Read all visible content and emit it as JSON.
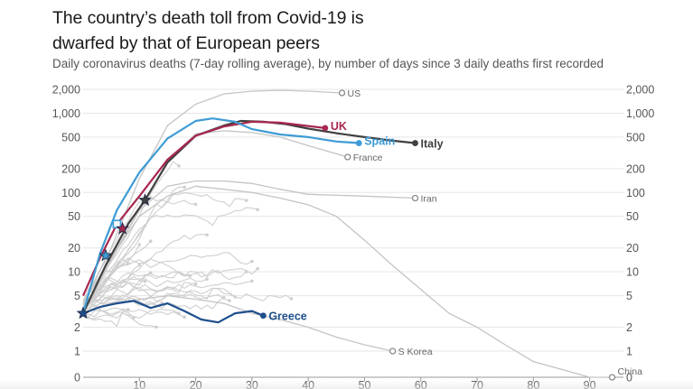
{
  "header": {
    "title_line1": "The country’s death toll from Covid-19 is",
    "title_line2": "dwarfed by that of European peers",
    "subtitle": "Daily coronavirus deaths (7-day rolling average), by number of days since 3 daily deaths first recorded"
  },
  "chart_data": {
    "type": "line",
    "title": "The country’s death toll from Covid-19 is dwarfed by that of European peers",
    "subtitle": "Daily coronavirus deaths (7-day rolling average), by number of days since 3 daily deaths first recorded",
    "xlabel": "",
    "ylabel": "",
    "xlim": [
      0,
      96
    ],
    "ylim": [
      0,
      2000
    ],
    "y_scale": "log",
    "x_ticks": [
      10,
      20,
      30,
      40,
      50,
      60,
      70,
      80,
      90
    ],
    "y_ticks": [
      {
        "value": 2000,
        "label": "2,000"
      },
      {
        "value": 1000,
        "label": "1,000"
      },
      {
        "value": 500,
        "label": "500"
      },
      {
        "value": 200,
        "label": "200"
      },
      {
        "value": 100,
        "label": "100"
      },
      {
        "value": 50,
        "label": "50"
      },
      {
        "value": 20,
        "label": "20"
      },
      {
        "value": 10,
        "label": "10"
      },
      {
        "value": 5,
        "label": "5"
      },
      {
        "value": 2,
        "label": "2"
      },
      {
        "value": 1,
        "label": "1"
      },
      {
        "value": 0,
        "label": "0"
      }
    ],
    "colors": {
      "UK": "#a8284f",
      "Spain": "#3d9bd5",
      "Italy": "#404040",
      "Greece": "#1e4f8c",
      "other": "#cfcfcf",
      "labeled_other": "#c4c4c4",
      "label_gray": "#666666",
      "tick_gray": "#555555"
    },
    "series": [
      {
        "name": "US",
        "highlight": false,
        "x": [
          0,
          5,
          10,
          15,
          20,
          25,
          30,
          35,
          40,
          46
        ],
        "y": [
          4,
          20,
          150,
          700,
          1300,
          1750,
          1900,
          1950,
          1900,
          1800
        ]
      },
      {
        "name": "France",
        "highlight": false,
        "x": [
          0,
          5,
          10,
          15,
          20,
          25,
          30,
          35,
          40,
          47
        ],
        "y": [
          3,
          14,
          60,
          250,
          550,
          600,
          570,
          500,
          390,
          280
        ]
      },
      {
        "name": "Iran",
        "highlight": false,
        "x": [
          0,
          5,
          10,
          15,
          20,
          25,
          30,
          35,
          40,
          50,
          59
        ],
        "y": [
          4,
          15,
          60,
          120,
          140,
          140,
          130,
          110,
          95,
          90,
          85
        ]
      },
      {
        "name": "S Korea",
        "highlight": false,
        "x": [
          0,
          5,
          10,
          15,
          20,
          25,
          30,
          35,
          40,
          45,
          50,
          55
        ],
        "y": [
          3,
          4,
          4.5,
          5,
          4.5,
          4,
          3,
          2.5,
          2,
          1.5,
          1.2,
          1
        ]
      },
      {
        "name": "China",
        "highlight": false,
        "x": [
          0,
          5,
          10,
          15,
          20,
          25,
          30,
          35,
          40,
          45,
          50,
          55,
          60,
          65,
          70,
          75,
          80,
          85,
          88,
          90,
          94
        ],
        "y": [
          4,
          15,
          50,
          90,
          120,
          110,
          100,
          85,
          70,
          50,
          25,
          12,
          6,
          3,
          2,
          1.2,
          0.6,
          0.3,
          0.12,
          0,
          0
        ]
      },
      {
        "name": "UK",
        "highlight": true,
        "x": [
          0,
          3,
          6,
          10,
          15,
          20,
          25,
          30,
          35,
          40,
          43
        ],
        "y": [
          5,
          15,
          40,
          90,
          260,
          520,
          680,
          780,
          760,
          690,
          650
        ]
      },
      {
        "name": "Spain",
        "highlight": true,
        "x": [
          0,
          3,
          6,
          10,
          15,
          20,
          23,
          27,
          30,
          35,
          40,
          45,
          49
        ],
        "y": [
          3,
          17,
          60,
          180,
          480,
          800,
          860,
          780,
          630,
          540,
          500,
          440,
          420
        ]
      },
      {
        "name": "Italy",
        "highlight": true,
        "x": [
          0,
          4,
          8,
          11,
          15,
          20,
          25,
          28,
          32,
          36,
          40,
          45,
          50,
          55,
          59
        ],
        "y": [
          3,
          12,
          40,
          80,
          240,
          520,
          700,
          800,
          780,
          730,
          640,
          560,
          500,
          450,
          420
        ]
      },
      {
        "name": "Greece",
        "highlight": true,
        "x": [
          0,
          3,
          6,
          9,
          12,
          15,
          18,
          21,
          24,
          27,
          30,
          32
        ],
        "y": [
          3,
          3.6,
          4,
          4.3,
          3.5,
          4,
          3.2,
          2.5,
          2.3,
          3,
          3.2,
          2.8
        ]
      }
    ],
    "labels": {
      "US": "US",
      "UK": "UK",
      "Spain": "Spain",
      "France": "France",
      "Italy": "Italy",
      "Iran": "Iran",
      "Greece": "Greece",
      "S Korea": "S Korea",
      "China": "China"
    },
    "milestone_stars": [
      {
        "series": "Greece",
        "x": 0,
        "y": 3
      },
      {
        "series": "Spain",
        "x": 4,
        "y": 16
      },
      {
        "series": "UK",
        "x": 7,
        "y": 35
      },
      {
        "series": "Italy",
        "x": 11,
        "y": 80
      }
    ],
    "milestone_squares": [
      {
        "series": "Spain",
        "x": 6,
        "y": 40
      }
    ]
  }
}
